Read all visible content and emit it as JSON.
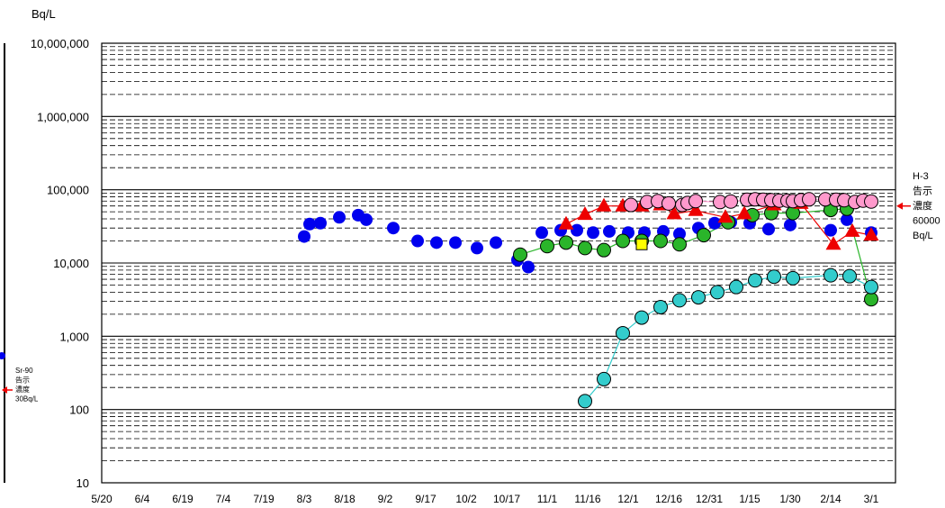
{
  "chart_data": {
    "type": "scatter",
    "ylabel": "Bq/L",
    "y_scale": "log",
    "ylim": [
      10,
      10000000
    ],
    "yticks": [
      "10",
      "100",
      "1,000",
      "10,000",
      "100,000",
      "1,000,000",
      "10,000,000"
    ],
    "x_start": "2013-05-20",
    "x_end": "2014-03-10",
    "xticks": [
      {
        "label": "5/20",
        "date": "2013-05-20"
      },
      {
        "label": "6/4",
        "date": "2013-06-04"
      },
      {
        "label": "6/19",
        "date": "2013-06-19"
      },
      {
        "label": "7/4",
        "date": "2013-07-04"
      },
      {
        "label": "7/19",
        "date": "2013-07-19"
      },
      {
        "label": "8/3",
        "date": "2013-08-03"
      },
      {
        "label": "8/18",
        "date": "2013-08-18"
      },
      {
        "label": "9/2",
        "date": "2013-09-02"
      },
      {
        "label": "9/17",
        "date": "2013-09-17"
      },
      {
        "label": "10/2",
        "date": "2013-10-02"
      },
      {
        "label": "10/17",
        "date": "2013-10-17"
      },
      {
        "label": "11/1",
        "date": "2013-11-01"
      },
      {
        "label": "11/16",
        "date": "2013-11-16"
      },
      {
        "label": "12/1",
        "date": "2013-12-01"
      },
      {
        "label": "12/16",
        "date": "2013-12-16"
      },
      {
        "label": "12/31",
        "date": "2013-12-31"
      },
      {
        "label": "1/15",
        "date": "2014-01-15"
      },
      {
        "label": "1/30",
        "date": "2014-01-30"
      },
      {
        "label": "2/14",
        "date": "2014-02-14"
      },
      {
        "label": "3/1",
        "date": "2014-03-01"
      }
    ],
    "grid": true,
    "series": [
      {
        "marker": "circle",
        "color": "#0000ee",
        "line": false,
        "points": [
          [
            "2013-08-03",
            23000
          ],
          [
            "2013-08-05",
            34000
          ],
          [
            "2013-08-09",
            35000
          ],
          [
            "2013-08-16",
            42000
          ],
          [
            "2013-08-23",
            45000
          ],
          [
            "2013-08-26",
            39000
          ],
          [
            "2013-09-05",
            30000
          ],
          [
            "2013-09-14",
            20000
          ],
          [
            "2013-09-21",
            19000
          ],
          [
            "2013-09-28",
            19000
          ],
          [
            "2013-10-06",
            16000
          ],
          [
            "2013-10-13",
            19000
          ],
          [
            "2013-10-21",
            11000
          ],
          [
            "2013-10-25",
            8800
          ],
          [
            "2013-10-30",
            26000
          ],
          [
            "2013-11-06",
            28000
          ],
          [
            "2013-11-12",
            28000
          ],
          [
            "2013-11-18",
            26000
          ],
          [
            "2013-11-24",
            27000
          ],
          [
            "2013-12-01",
            26000
          ],
          [
            "2013-12-07",
            26000
          ],
          [
            "2013-12-14",
            27000
          ],
          [
            "2013-12-20",
            25000
          ],
          [
            "2013-12-27",
            30000
          ],
          [
            "2014-01-02",
            35000
          ],
          [
            "2014-01-08",
            36000
          ],
          [
            "2014-01-15",
            35000
          ],
          [
            "2014-01-22",
            29000
          ],
          [
            "2014-01-30",
            33000
          ],
          [
            "2014-02-14",
            28000
          ],
          [
            "2014-02-20",
            39000
          ],
          [
            "2014-03-01",
            26000
          ]
        ]
      },
      {
        "marker": "circle",
        "color": "#2ab52a",
        "line": true,
        "points": [
          [
            "2013-10-22",
            13000
          ],
          [
            "2013-11-01",
            17000
          ],
          [
            "2013-11-08",
            19000
          ],
          [
            "2013-11-15",
            16000
          ],
          [
            "2013-11-22",
            15000
          ],
          [
            "2013-11-29",
            20000
          ],
          [
            "2013-12-06",
            20000
          ],
          [
            "2013-12-13",
            20000
          ],
          [
            "2013-12-20",
            18000
          ],
          [
            "2013-12-29",
            24000
          ],
          [
            "2014-01-07",
            36000
          ],
          [
            "2014-01-16",
            45000
          ],
          [
            "2014-01-23",
            48000
          ],
          [
            "2014-01-31",
            48000
          ],
          [
            "2014-02-14",
            53000
          ],
          [
            "2014-02-20",
            55000
          ],
          [
            "2014-03-01",
            3200
          ]
        ]
      },
      {
        "marker": "circle",
        "color": "#33cccc",
        "line": true,
        "points": [
          [
            "2013-11-15",
            130
          ],
          [
            "2013-11-22",
            260
          ],
          [
            "2013-11-29",
            1100
          ],
          [
            "2013-12-06",
            1800
          ],
          [
            "2013-12-13",
            2500
          ],
          [
            "2013-12-20",
            3100
          ],
          [
            "2013-12-27",
            3400
          ],
          [
            "2014-01-03",
            4000
          ],
          [
            "2014-01-10",
            4700
          ],
          [
            "2014-01-17",
            5800
          ],
          [
            "2014-01-24",
            6500
          ],
          [
            "2014-01-31",
            6200
          ],
          [
            "2014-02-14",
            6800
          ],
          [
            "2014-02-21",
            6600
          ],
          [
            "2014-03-01",
            4700
          ]
        ]
      },
      {
        "marker": "triangle",
        "color": "#ee0000",
        "line": true,
        "points": [
          [
            "2013-11-08",
            34000
          ],
          [
            "2013-11-15",
            46000
          ],
          [
            "2013-11-22",
            60000
          ],
          [
            "2013-11-29",
            60000
          ],
          [
            "2013-12-06",
            60000
          ],
          [
            "2013-12-13",
            62000
          ],
          [
            "2013-12-18",
            47000
          ],
          [
            "2013-12-26",
            52000
          ],
          [
            "2014-01-06",
            42000
          ],
          [
            "2014-01-13",
            47000
          ],
          [
            "2014-01-24",
            62000
          ],
          [
            "2014-02-03",
            65000
          ],
          [
            "2014-02-15",
            18000
          ],
          [
            "2014-02-22",
            27000
          ],
          [
            "2014-03-01",
            24000
          ]
        ]
      },
      {
        "marker": "circle",
        "color": "#ff99cc",
        "line": true,
        "points": [
          [
            "2013-12-02",
            62000
          ],
          [
            "2013-12-08",
            68000
          ],
          [
            "2013-12-12",
            70000
          ],
          [
            "2013-12-16",
            65000
          ],
          [
            "2013-12-21",
            62000
          ],
          [
            "2013-12-23",
            66000
          ],
          [
            "2013-12-26",
            70000
          ],
          [
            "2014-01-04",
            68000
          ],
          [
            "2014-01-08",
            69000
          ],
          [
            "2014-01-14",
            73000
          ],
          [
            "2014-01-17",
            74000
          ],
          [
            "2014-01-20",
            73000
          ],
          [
            "2014-01-23",
            72000
          ],
          [
            "2014-01-26",
            71000
          ],
          [
            "2014-01-29",
            71000
          ],
          [
            "2014-01-31",
            70000
          ],
          [
            "2014-02-03",
            72000
          ],
          [
            "2014-02-06",
            74000
          ],
          [
            "2014-02-12",
            74000
          ],
          [
            "2014-02-16",
            73000
          ],
          [
            "2014-02-19",
            72000
          ],
          [
            "2014-02-23",
            68000
          ],
          [
            "2014-02-26",
            71000
          ],
          [
            "2014-03-01",
            69000
          ]
        ]
      },
      {
        "marker": "square",
        "color": "#ffff00",
        "line": false,
        "points": [
          [
            "2013-12-06",
            18000
          ]
        ]
      }
    ],
    "annotations": [
      {
        "lines": [
          "H-3",
          "告示",
          "濃度",
          "60000",
          "Bq/L"
        ],
        "value": 60000,
        "arrow": "left",
        "color": "#ee0000"
      },
      {
        "lines": [
          "Sr-90",
          "告示",
          "濃度",
          "30Bq/L"
        ],
        "value": 30,
        "arrow": "left",
        "color": "#ee0000"
      }
    ]
  }
}
